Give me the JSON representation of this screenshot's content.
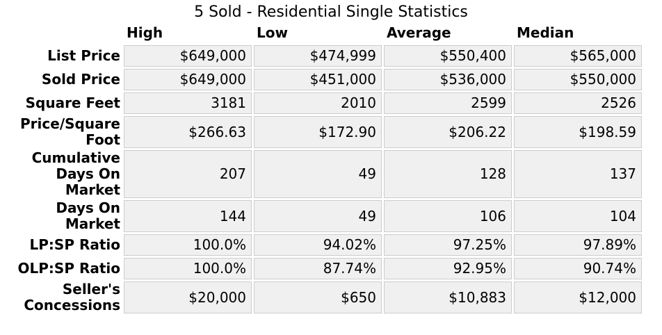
{
  "chart_data": {
    "type": "table",
    "title": "5 Sold - Residential Single Statistics",
    "columns": [
      "High",
      "Low",
      "Average",
      "Median"
    ],
    "rows": [
      {
        "label": "List Price",
        "values": [
          "$649,000",
          "$474,999",
          "$550,400",
          "$565,000"
        ]
      },
      {
        "label": "Sold Price",
        "values": [
          "$649,000",
          "$451,000",
          "$536,000",
          "$550,000"
        ]
      },
      {
        "label": "Square Feet",
        "values": [
          "3181",
          "2010",
          "2599",
          "2526"
        ]
      },
      {
        "label": "Price/Square\nFoot",
        "values": [
          "$266.63",
          "$172.90",
          "$206.22",
          "$198.59"
        ]
      },
      {
        "label": "Cumulative\nDays On\nMarket",
        "values": [
          "207",
          "49",
          "128",
          "137"
        ]
      },
      {
        "label": "Days On\nMarket",
        "values": [
          "144",
          "49",
          "106",
          "104"
        ]
      },
      {
        "label": "LP:SP Ratio",
        "values": [
          "100.0%",
          "94.02%",
          "97.25%",
          "97.89%"
        ]
      },
      {
        "label": "OLP:SP Ratio",
        "values": [
          "100.0%",
          "87.74%",
          "92.95%",
          "90.74%"
        ]
      },
      {
        "label": "Seller's\nConcessions",
        "values": [
          "$20,000",
          "$650",
          "$10,883",
          "$12,000"
        ]
      }
    ]
  },
  "colors": {
    "page_bg": "#ffffff",
    "cell_bg": "#f0f0f0",
    "cell_border": "#cccccc",
    "text": "#000000"
  }
}
